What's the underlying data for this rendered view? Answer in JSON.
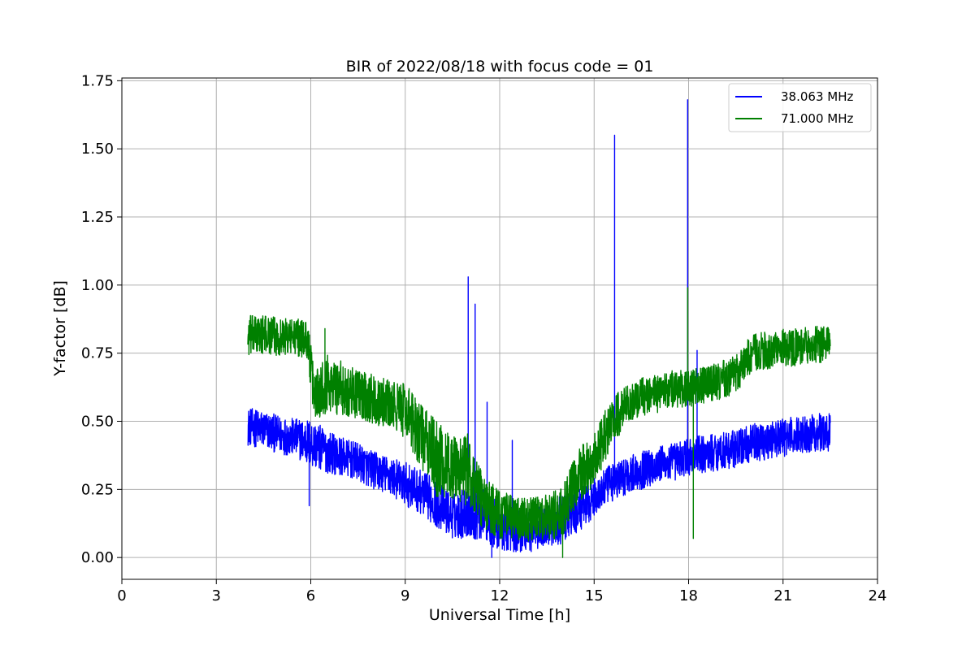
{
  "chart_data": {
    "type": "line",
    "title": "BIR of 2022/08/18 with focus code = 01",
    "xlabel": "Universal Time [h]",
    "ylabel": "Y-factor [dB]",
    "xlim": [
      0,
      24
    ],
    "ylim": [
      -0.08,
      1.76
    ],
    "xticks": [
      0,
      3,
      6,
      9,
      12,
      15,
      18,
      21,
      24
    ],
    "yticks": [
      0.0,
      0.25,
      0.5,
      0.75,
      1.0,
      1.25,
      1.5,
      1.75
    ],
    "ytick_labels": [
      "0.00",
      "0.25",
      "0.50",
      "0.75",
      "1.00",
      "1.25",
      "1.50",
      "1.75"
    ],
    "grid": true,
    "legend_position": "top-right",
    "series": [
      {
        "name": "38.063 MHz",
        "color": "#0000ff",
        "x": [
          4.0,
          4.5,
          5.0,
          5.5,
          6.0,
          6.5,
          7.0,
          7.5,
          8.0,
          8.5,
          9.0,
          9.5,
          10.0,
          10.5,
          11.0,
          11.5,
          12.0,
          12.5,
          13.0,
          13.5,
          14.0,
          14.5,
          15.0,
          15.5,
          16.0,
          16.5,
          17.0,
          17.5,
          18.0,
          18.5,
          19.0,
          19.5,
          20.0,
          20.5,
          21.0,
          21.5,
          22.0,
          22.5
        ],
        "y_center": [
          0.48,
          0.47,
          0.45,
          0.44,
          0.42,
          0.39,
          0.37,
          0.35,
          0.32,
          0.3,
          0.27,
          0.24,
          0.2,
          0.15,
          0.17,
          0.16,
          0.11,
          0.1,
          0.1,
          0.12,
          0.14,
          0.17,
          0.22,
          0.27,
          0.3,
          0.32,
          0.34,
          0.35,
          0.37,
          0.38,
          0.39,
          0.4,
          0.42,
          0.43,
          0.44,
          0.45,
          0.46,
          0.46
        ],
        "y_spread": [
          0.07,
          0.07,
          0.07,
          0.07,
          0.09,
          0.08,
          0.07,
          0.07,
          0.07,
          0.07,
          0.08,
          0.08,
          0.09,
          0.08,
          0.1,
          0.1,
          0.09,
          0.08,
          0.08,
          0.08,
          0.09,
          0.08,
          0.07,
          0.07,
          0.07,
          0.07,
          0.07,
          0.07,
          0.07,
          0.07,
          0.07,
          0.07,
          0.07,
          0.07,
          0.07,
          0.07,
          0.07,
          0.07
        ],
        "spikes": [
          {
            "x": 5.95,
            "y": 0.19
          },
          {
            "x": 11.0,
            "y": 1.03
          },
          {
            "x": 11.22,
            "y": 0.93
          },
          {
            "x": 11.6,
            "y": 0.57
          },
          {
            "x": 11.75,
            "y": 0.0
          },
          {
            "x": 12.4,
            "y": 0.43
          },
          {
            "x": 15.65,
            "y": 1.55
          },
          {
            "x": 17.97,
            "y": 1.68
          },
          {
            "x": 18.27,
            "y": 0.76
          }
        ]
      },
      {
        "name": "71.000 MHz",
        "color": "#008000",
        "x": [
          4.0,
          4.5,
          5.0,
          5.5,
          5.9,
          6.1,
          6.5,
          7.0,
          7.5,
          8.0,
          8.5,
          9.0,
          9.5,
          10.0,
          10.5,
          11.0,
          11.5,
          12.0,
          12.5,
          13.0,
          13.5,
          14.0,
          14.5,
          15.0,
          15.5,
          16.0,
          16.5,
          17.0,
          17.5,
          18.0,
          18.5,
          19.0,
          19.5,
          20.0,
          20.5,
          21.0,
          21.5,
          22.0,
          22.5
        ],
        "y_center": [
          0.81,
          0.82,
          0.81,
          0.81,
          0.8,
          0.6,
          0.64,
          0.62,
          0.6,
          0.58,
          0.56,
          0.54,
          0.45,
          0.36,
          0.33,
          0.32,
          0.2,
          0.16,
          0.14,
          0.14,
          0.15,
          0.16,
          0.3,
          0.36,
          0.48,
          0.56,
          0.59,
          0.6,
          0.62,
          0.62,
          0.63,
          0.65,
          0.67,
          0.75,
          0.76,
          0.77,
          0.77,
          0.78,
          0.78
        ],
        "y_spread": [
          0.08,
          0.07,
          0.07,
          0.07,
          0.07,
          0.1,
          0.11,
          0.1,
          0.09,
          0.09,
          0.09,
          0.1,
          0.12,
          0.14,
          0.12,
          0.14,
          0.1,
          0.09,
          0.08,
          0.08,
          0.08,
          0.1,
          0.1,
          0.1,
          0.1,
          0.07,
          0.07,
          0.07,
          0.07,
          0.07,
          0.07,
          0.07,
          0.07,
          0.07,
          0.07,
          0.07,
          0.07,
          0.07,
          0.07
        ],
        "spikes": [
          {
            "x": 6.45,
            "y": 0.84
          },
          {
            "x": 14.0,
            "y": 0.0
          },
          {
            "x": 17.97,
            "y": 0.99
          },
          {
            "x": 18.15,
            "y": 0.07
          }
        ]
      }
    ]
  }
}
